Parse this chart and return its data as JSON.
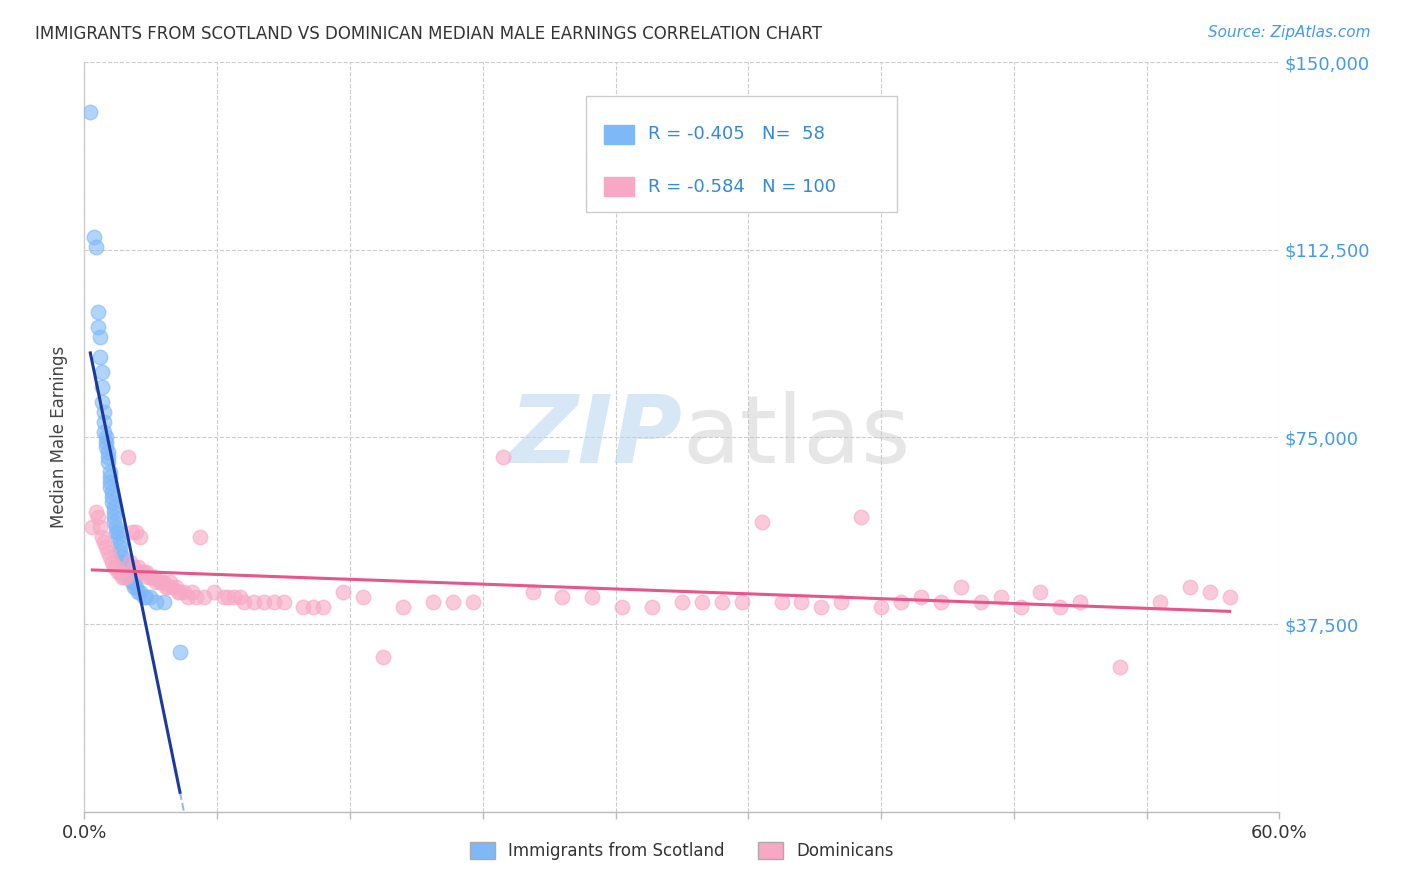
{
  "title": "IMMIGRANTS FROM SCOTLAND VS DOMINICAN MEDIAN MALE EARNINGS CORRELATION CHART",
  "source": "Source: ZipAtlas.com",
  "ylabel": "Median Male Earnings",
  "xlim": [
    0.0,
    0.6
  ],
  "ylim": [
    0,
    150000
  ],
  "yticks": [
    0,
    37500,
    75000,
    112500,
    150000
  ],
  "ytick_labels": [
    "",
    "$37,500",
    "$75,000",
    "$112,500",
    "$150,000"
  ],
  "xticks": [
    0.0,
    0.06667,
    0.13333,
    0.2,
    0.26667,
    0.33333,
    0.4,
    0.46667,
    0.53333,
    0.6
  ],
  "scotland_color": "#7eb8f7",
  "dominican_color": "#f7a8c4",
  "scotland_R": -0.405,
  "scotland_N": 58,
  "dominican_R": -0.584,
  "dominican_N": 100,
  "trend_scotland_color": "#1a3a9e",
  "trend_dominican_color": "#e8558a",
  "trend_dashed_color": "#a0b8e8",
  "legend_label_scotland": "Immigrants from Scotland",
  "legend_label_dominican": "Dominicans",
  "watermark_zip": "ZIP",
  "watermark_atlas": "atlas",
  "background_color": "#ffffff",
  "scotland_x": [
    0.003,
    0.005,
    0.006,
    0.007,
    0.007,
    0.008,
    0.008,
    0.009,
    0.009,
    0.009,
    0.01,
    0.01,
    0.01,
    0.011,
    0.011,
    0.011,
    0.012,
    0.012,
    0.012,
    0.013,
    0.013,
    0.013,
    0.013,
    0.014,
    0.014,
    0.014,
    0.015,
    0.015,
    0.015,
    0.015,
    0.016,
    0.016,
    0.017,
    0.017,
    0.018,
    0.018,
    0.018,
    0.019,
    0.019,
    0.02,
    0.02,
    0.021,
    0.021,
    0.022,
    0.022,
    0.023,
    0.024,
    0.025,
    0.025,
    0.026,
    0.027,
    0.028,
    0.03,
    0.031,
    0.033,
    0.036,
    0.04,
    0.048
  ],
  "scotland_y": [
    140000,
    115000,
    113000,
    100000,
    97000,
    95000,
    91000,
    88000,
    85000,
    82000,
    80000,
    78000,
    76000,
    75000,
    74000,
    73000,
    72000,
    71000,
    70000,
    68000,
    67000,
    66000,
    65000,
    64000,
    63000,
    62000,
    61000,
    60000,
    59000,
    58000,
    57000,
    56000,
    56000,
    55000,
    54000,
    53000,
    52000,
    51000,
    50000,
    50000,
    49000,
    49000,
    48000,
    48000,
    47000,
    47000,
    46000,
    46000,
    45000,
    45000,
    44000,
    44000,
    43000,
    43000,
    43000,
    42000,
    42000,
    32000
  ],
  "dominican_x": [
    0.004,
    0.006,
    0.007,
    0.008,
    0.009,
    0.01,
    0.011,
    0.012,
    0.013,
    0.014,
    0.015,
    0.016,
    0.017,
    0.018,
    0.019,
    0.02,
    0.021,
    0.022,
    0.023,
    0.024,
    0.025,
    0.026,
    0.027,
    0.028,
    0.029,
    0.03,
    0.031,
    0.032,
    0.033,
    0.034,
    0.035,
    0.036,
    0.038,
    0.039,
    0.04,
    0.041,
    0.042,
    0.043,
    0.044,
    0.046,
    0.047,
    0.048,
    0.05,
    0.052,
    0.054,
    0.056,
    0.058,
    0.06,
    0.065,
    0.07,
    0.072,
    0.075,
    0.078,
    0.08,
    0.085,
    0.09,
    0.095,
    0.1,
    0.11,
    0.115,
    0.12,
    0.13,
    0.14,
    0.15,
    0.16,
    0.175,
    0.185,
    0.195,
    0.21,
    0.225,
    0.24,
    0.255,
    0.27,
    0.285,
    0.3,
    0.32,
    0.34,
    0.36,
    0.38,
    0.4,
    0.42,
    0.44,
    0.46,
    0.48,
    0.5,
    0.52,
    0.54,
    0.555,
    0.565,
    0.575,
    0.31,
    0.33,
    0.35,
    0.37,
    0.39,
    0.41,
    0.43,
    0.45,
    0.47,
    0.49
  ],
  "dominican_y": [
    57000,
    60000,
    59000,
    57000,
    55000,
    54000,
    53000,
    52000,
    51000,
    50000,
    49000,
    49000,
    48000,
    48000,
    47000,
    47000,
    47000,
    71000,
    50000,
    56000,
    49000,
    56000,
    49000,
    55000,
    48000,
    48000,
    48000,
    47000,
    47000,
    47000,
    47000,
    46000,
    46000,
    46000,
    46000,
    45000,
    45000,
    46000,
    45000,
    45000,
    44000,
    44000,
    44000,
    43000,
    44000,
    43000,
    55000,
    43000,
    44000,
    43000,
    43000,
    43000,
    43000,
    42000,
    42000,
    42000,
    42000,
    42000,
    41000,
    41000,
    41000,
    44000,
    43000,
    31000,
    41000,
    42000,
    42000,
    42000,
    71000,
    44000,
    43000,
    43000,
    41000,
    41000,
    42000,
    42000,
    58000,
    42000,
    42000,
    41000,
    43000,
    45000,
    43000,
    44000,
    42000,
    29000,
    42000,
    45000,
    44000,
    43000,
    42000,
    42000,
    42000,
    41000,
    59000,
    42000,
    42000,
    42000,
    41000,
    41000
  ]
}
